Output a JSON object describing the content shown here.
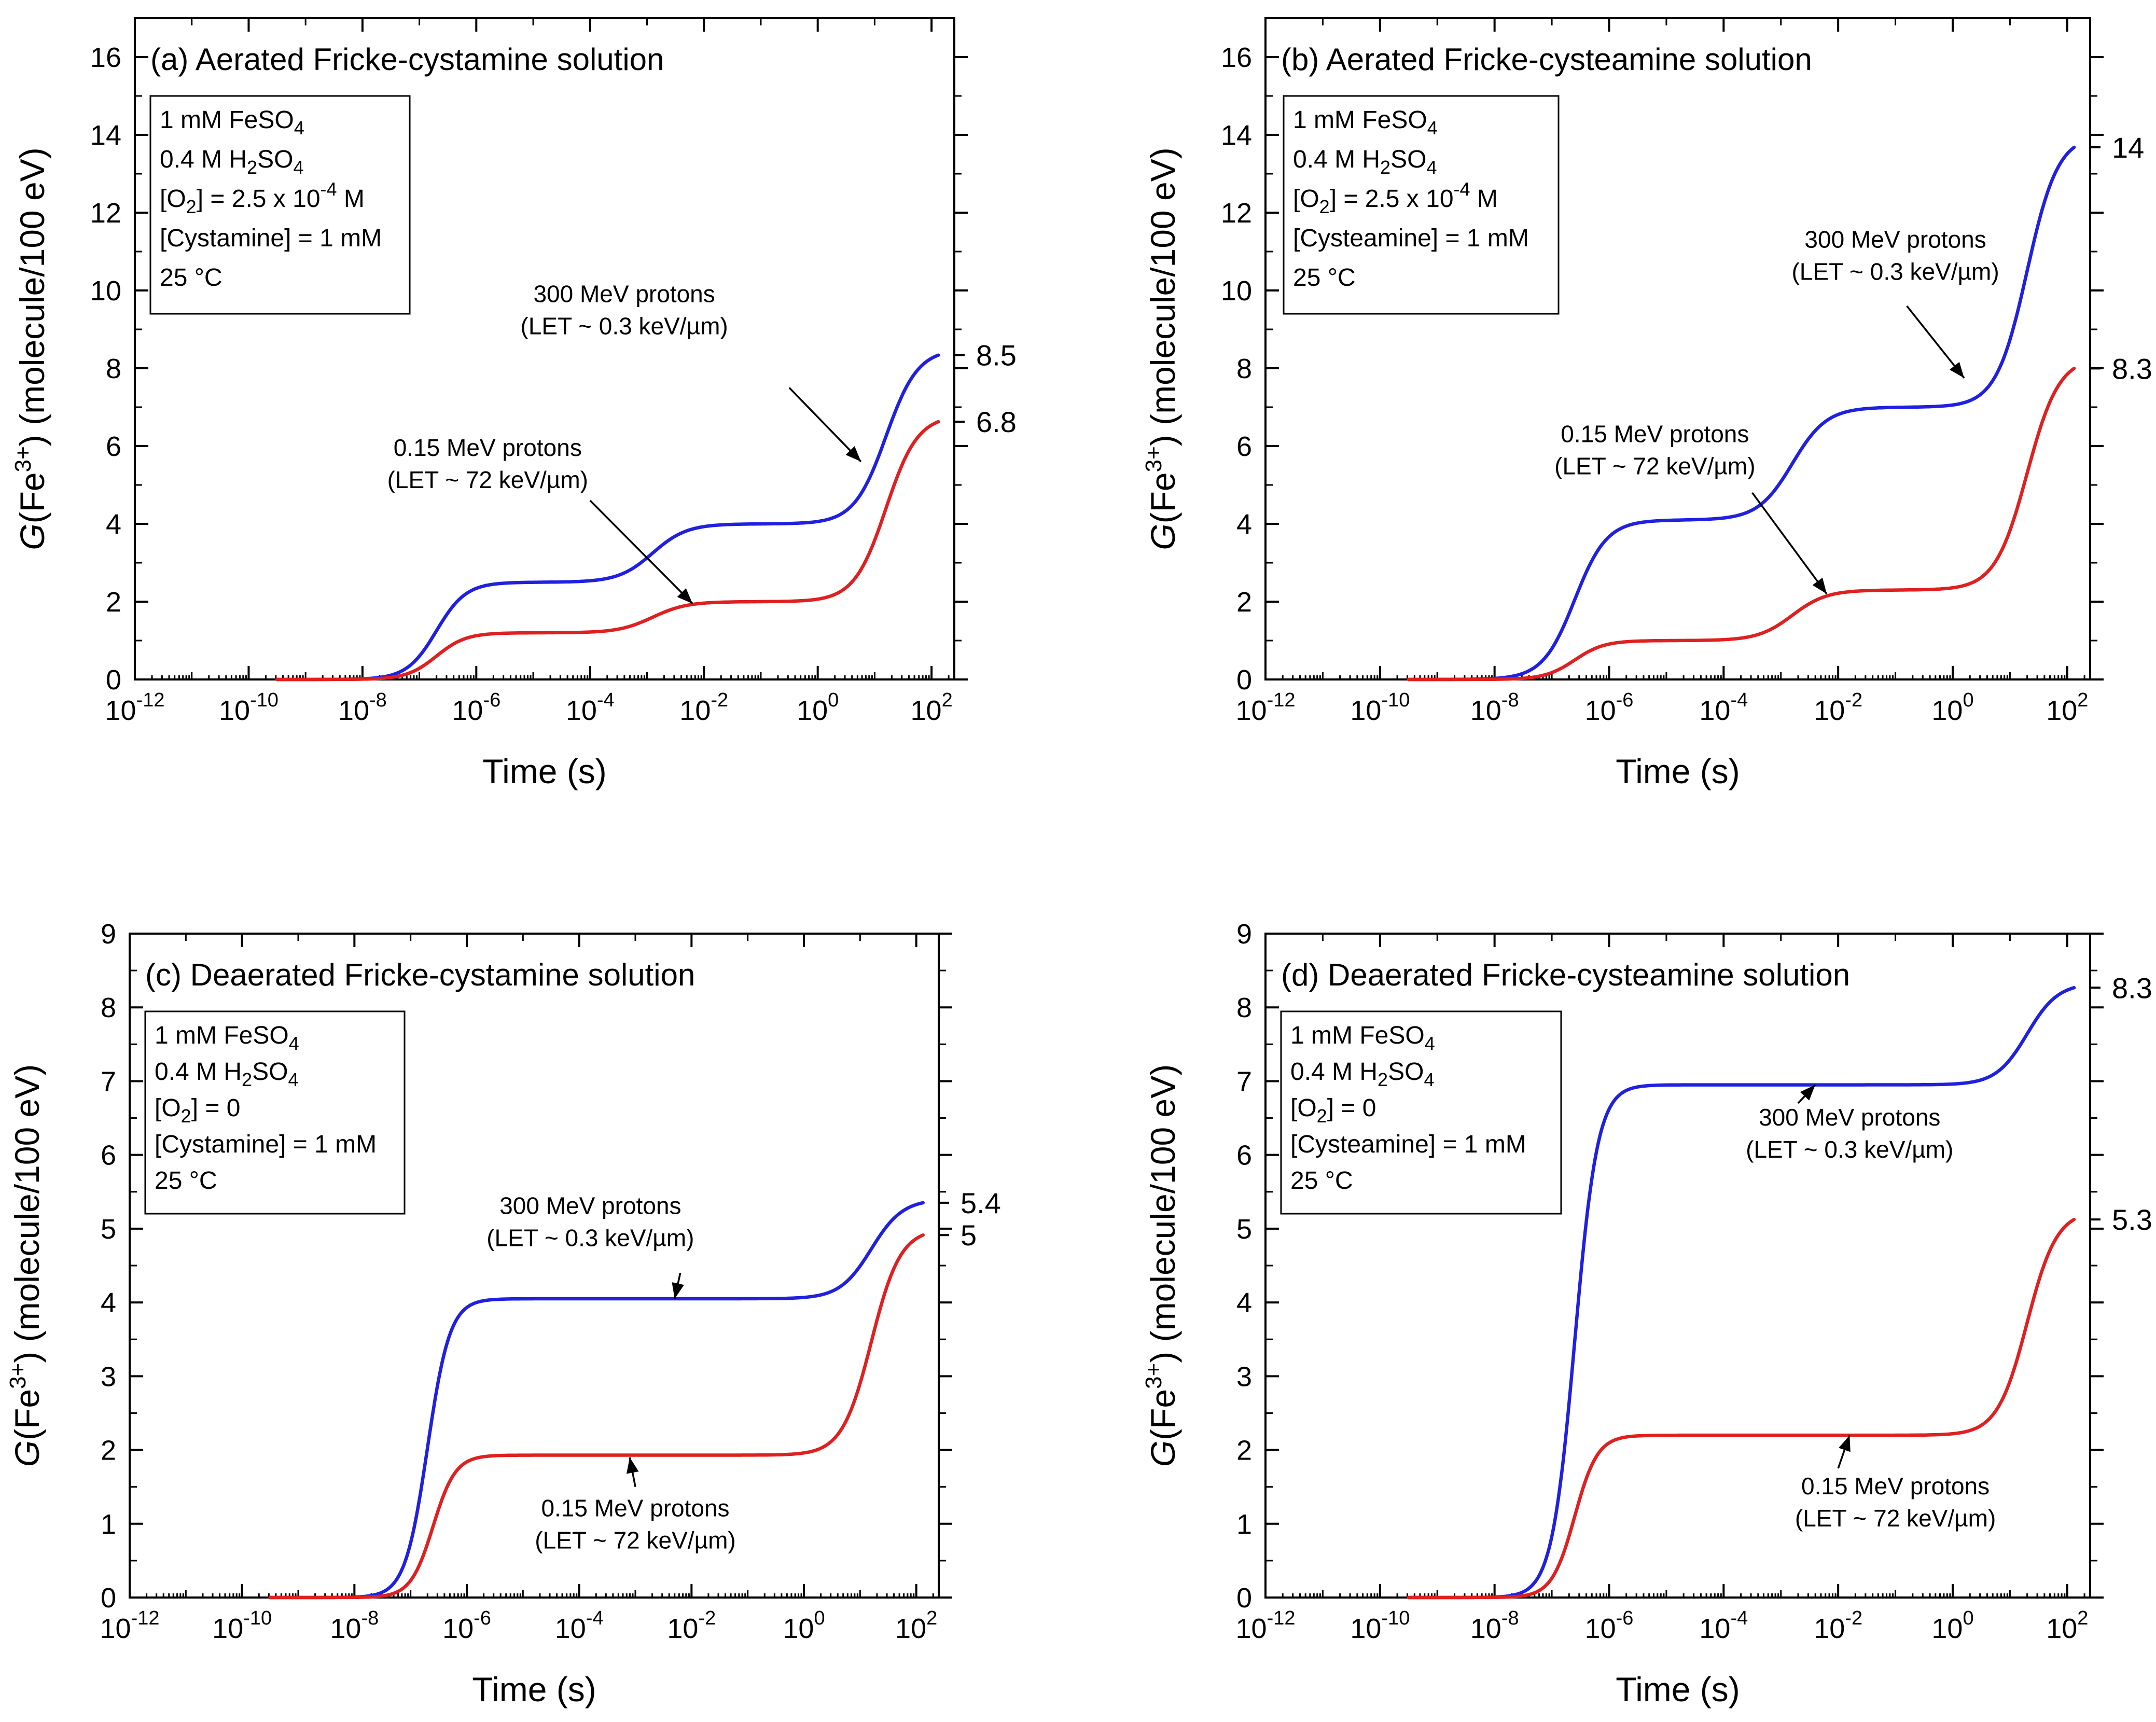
{
  "colors": {
    "high_energy": "#2020e0",
    "low_energy": "#e02020",
    "axis": "#000000"
  },
  "chart_data": [
    {
      "id": "a",
      "type": "line",
      "title": "(a) Aerated Fricke-cystamine solution",
      "xlabel": "Time (s)",
      "ylabel": "G(Fe3+) (molecule/100 eV)",
      "ylabel_parts": {
        "g": "G",
        "open": "(Fe",
        "sup": "3+",
        "close": ") (molecule/100 eV)"
      },
      "xscale": "log",
      "xlim_log10": [
        -12,
        2.4
      ],
      "ylim": [
        0,
        17
      ],
      "yticks": [
        0,
        2,
        4,
        6,
        8,
        10,
        12,
        14,
        16
      ],
      "xticks_log10": [
        -12,
        -10,
        -8,
        -6,
        -4,
        -2,
        0,
        2
      ],
      "conditions": [
        {
          "base": "1 mM FeSO",
          "sub": "4"
        },
        {
          "base": "0.4 M H",
          "sub": "2",
          "tail": "SO",
          "sub2": "4"
        },
        {
          "base": "[O",
          "sub": "2",
          "tail": "] = 2.5 x 10",
          "sup": "-4",
          "tail2": " M"
        },
        {
          "base": "[Cystamine] = 1 mM"
        },
        {
          "base": "25 °C"
        }
      ],
      "series": [
        {
          "name": "300 MeV protons",
          "let": "(LET ~ 0.3 keV/µm)",
          "color_key": "high_energy",
          "end_label": "8.5",
          "steps": [
            {
              "c": -6.7,
              "w": 0.26,
              "a": 2.5
            },
            {
              "c": -2.9,
              "w": 0.3,
              "a": 1.5
            },
            {
              "c": 1.2,
              "w": 0.28,
              "a": 4.5
            }
          ]
        },
        {
          "name": "0.15 MeV protons",
          "let": "(LET ~ 72 keV/µm)",
          "color_key": "low_energy",
          "end_label": "6.8",
          "steps": [
            {
              "c": -6.7,
              "w": 0.26,
              "a": 1.2
            },
            {
              "c": -2.9,
              "w": 0.3,
              "a": 0.8
            },
            {
              "c": 1.2,
              "w": 0.28,
              "a": 4.8
            }
          ]
        }
      ],
      "annotations": [
        {
          "series": 0,
          "lines": [
            "300 MeV protons",
            "(LET ~ 0.3 keV/µm)"
          ],
          "text_pos": [
            -3.4,
            9.7
          ],
          "arrow_from": [
            -0.5,
            7.5
          ],
          "arrow_to": [
            0.76,
            5.6
          ]
        },
        {
          "series": 1,
          "lines": [
            "0.15 MeV protons",
            "(LET ~ 72 keV/µm)"
          ],
          "text_pos": [
            -5.8,
            5.75
          ],
          "arrow_from": [
            -4.0,
            4.6
          ],
          "arrow_to": [
            -2.2,
            1.95
          ]
        }
      ]
    },
    {
      "id": "b",
      "type": "line",
      "title": "(b) Aerated Fricke-cysteamine solution",
      "xlabel": "Time (s)",
      "ylabel": "G(Fe3+) (molecule/100 eV)",
      "ylabel_parts": {
        "g": "G",
        "open": "(Fe",
        "sup": "3+",
        "close": ") (molecule/100 eV)"
      },
      "xscale": "log",
      "xlim_log10": [
        -12,
        2.4
      ],
      "ylim": [
        0,
        17
      ],
      "yticks": [
        0,
        2,
        4,
        6,
        8,
        10,
        12,
        14,
        16
      ],
      "xticks_log10": [
        -12,
        -10,
        -8,
        -6,
        -4,
        -2,
        0,
        2
      ],
      "conditions": [
        {
          "base": "1 mM FeSO",
          "sub": "4"
        },
        {
          "base": "0.4 M H",
          "sub": "2",
          "tail": "SO",
          "sub2": "4"
        },
        {
          "base": "[O",
          "sub": "2",
          "tail": "] = 2.5 x 10",
          "sup": "-4",
          "tail2": " M"
        },
        {
          "base": "[Cysteamine] = 1 mM"
        },
        {
          "base": "25 °C"
        }
      ],
      "series": [
        {
          "name": "300 MeV protons",
          "let": "(LET ~ 0.3 keV/µm)",
          "color_key": "high_energy",
          "end_label": "14",
          "steps": [
            {
              "c": -6.6,
              "w": 0.28,
              "a": 4.1
            },
            {
              "c": -2.8,
              "w": 0.3,
              "a": 2.9
            },
            {
              "c": 1.3,
              "w": 0.27,
              "a": 7.0
            }
          ]
        },
        {
          "name": "0.15 MeV protons",
          "let": "(LET ~ 72 keV/µm)",
          "color_key": "low_energy",
          "end_label": "8.3",
          "steps": [
            {
              "c": -6.6,
              "w": 0.26,
              "a": 1.0
            },
            {
              "c": -2.8,
              "w": 0.3,
              "a": 1.3
            },
            {
              "c": 1.3,
              "w": 0.28,
              "a": 6.0
            }
          ]
        }
      ],
      "annotations": [
        {
          "series": 0,
          "lines": [
            "300 MeV protons",
            "(LET ~ 0.3 keV/µm)"
          ],
          "text_pos": [
            -1.0,
            11.1
          ],
          "arrow_from": [
            -0.8,
            9.6
          ],
          "arrow_to": [
            0.2,
            7.75
          ]
        },
        {
          "series": 1,
          "lines": [
            "0.15 MeV protons",
            "(LET ~ 72 keV/µm)"
          ],
          "text_pos": [
            -5.2,
            6.1
          ],
          "arrow_from": [
            -3.5,
            4.8
          ],
          "arrow_to": [
            -2.2,
            2.2
          ]
        }
      ]
    },
    {
      "id": "c",
      "type": "line",
      "title": "(c) Deaerated Fricke-cystamine solution",
      "xlabel": "Time (s)",
      "ylabel": "G(Fe3+) (molecule/100 eV)",
      "ylabel_parts": {
        "g": "G",
        "open": "(Fe",
        "sup": "3+",
        "close": ") (molecule/100 eV)"
      },
      "xscale": "log",
      "xlim_log10": [
        -12,
        2.4
      ],
      "ylim": [
        0,
        9
      ],
      "yticks": [
        0,
        1,
        2,
        3,
        4,
        5,
        6,
        7,
        8,
        9
      ],
      "xticks_log10": [
        -12,
        -10,
        -8,
        -6,
        -4,
        -2,
        0,
        2
      ],
      "conditions": [
        {
          "base": "1 mM FeSO",
          "sub": "4"
        },
        {
          "base": "0.4 M H",
          "sub": "2",
          "tail": "SO",
          "sub2": "4"
        },
        {
          "base": "[O",
          "sub": "2",
          "tail": "] = 0"
        },
        {
          "base": "[Cystamine] = 1 mM"
        },
        {
          "base": "25 °C"
        }
      ],
      "series": [
        {
          "name": "300 MeV protons",
          "let": "(LET ~ 0.3 keV/µm)",
          "color_key": "high_energy",
          "end_label": "5.4",
          "steps": [
            {
              "c": -6.7,
              "w": 0.2,
              "a": 4.05
            },
            {
              "c": 1.2,
              "w": 0.28,
              "a": 1.35
            }
          ]
        },
        {
          "name": "0.15 MeV protons",
          "let": "(LET ~ 72 keV/µm)",
          "color_key": "low_energy",
          "end_label": "5",
          "steps": [
            {
              "c": -6.6,
              "w": 0.2,
              "a": 1.93
            },
            {
              "c": 1.2,
              "w": 0.26,
              "a": 3.07
            }
          ]
        }
      ],
      "annotations": [
        {
          "series": 0,
          "lines": [
            "300 MeV protons",
            "(LET ~ 0.3 keV/µm)"
          ],
          "text_pos": [
            -3.8,
            5.2
          ],
          "arrow_from": [
            -2.2,
            4.4
          ],
          "arrow_to": [
            -2.3,
            4.05
          ]
        },
        {
          "series": 1,
          "lines": [
            "0.15 MeV protons",
            "(LET ~ 72 keV/µm)"
          ],
          "text_pos": [
            -3.0,
            1.1
          ],
          "arrow_from": [
            -3.0,
            1.5
          ],
          "arrow_to": [
            -3.1,
            1.9
          ]
        }
      ]
    },
    {
      "id": "d",
      "type": "line",
      "title": "(d) Deaerated Fricke-cysteamine solution",
      "xlabel": "Time (s)",
      "ylabel": "G(Fe3+) (molecule/100 eV)",
      "ylabel_parts": {
        "g": "G",
        "open": "(Fe",
        "sup": "3+",
        "close": ") (molecule/100 eV)"
      },
      "xscale": "log",
      "xlim_log10": [
        -12,
        2.4
      ],
      "ylim": [
        0,
        9
      ],
      "yticks": [
        0,
        1,
        2,
        3,
        4,
        5,
        6,
        7,
        8,
        9
      ],
      "xticks_log10": [
        -12,
        -10,
        -8,
        -6,
        -4,
        -2,
        0,
        2
      ],
      "conditions": [
        {
          "base": "1 mM FeSO",
          "sub": "4"
        },
        {
          "base": "0.4 M H",
          "sub": "2",
          "tail": "SO",
          "sub2": "4"
        },
        {
          "base": "[O",
          "sub": "2",
          "tail": "] = 0"
        },
        {
          "base": "[Cysteamine] = 1 mM"
        },
        {
          "base": "25 °C"
        }
      ],
      "series": [
        {
          "name": "300 MeV protons",
          "let": "(LET ~ 0.3 keV/µm)",
          "color_key": "high_energy",
          "end_label": "8.3",
          "steps": [
            {
              "c": -6.6,
              "w": 0.2,
              "a": 6.95
            },
            {
              "c": 1.3,
              "w": 0.27,
              "a": 1.38
            }
          ]
        },
        {
          "name": "0.15 MeV protons",
          "let": "(LET ~ 72 keV/µm)",
          "color_key": "low_energy",
          "end_label": "5.3",
          "steps": [
            {
              "c": -6.6,
              "w": 0.2,
              "a": 2.2
            },
            {
              "c": 1.3,
              "w": 0.26,
              "a": 3.05
            }
          ]
        }
      ],
      "annotations": [
        {
          "series": 0,
          "lines": [
            "300 MeV protons",
            "(LET ~ 0.3 keV/µm)"
          ],
          "text_pos": [
            -1.8,
            6.4
          ],
          "arrow_from": [
            -2.7,
            6.7
          ],
          "arrow_to": [
            -2.4,
            6.95
          ]
        },
        {
          "series": 1,
          "lines": [
            "0.15 MeV protons",
            "(LET ~ 72 keV/µm)"
          ],
          "text_pos": [
            -1.0,
            1.4
          ],
          "arrow_from": [
            -2.0,
            1.75
          ],
          "arrow_to": [
            -1.8,
            2.2
          ]
        }
      ]
    }
  ]
}
